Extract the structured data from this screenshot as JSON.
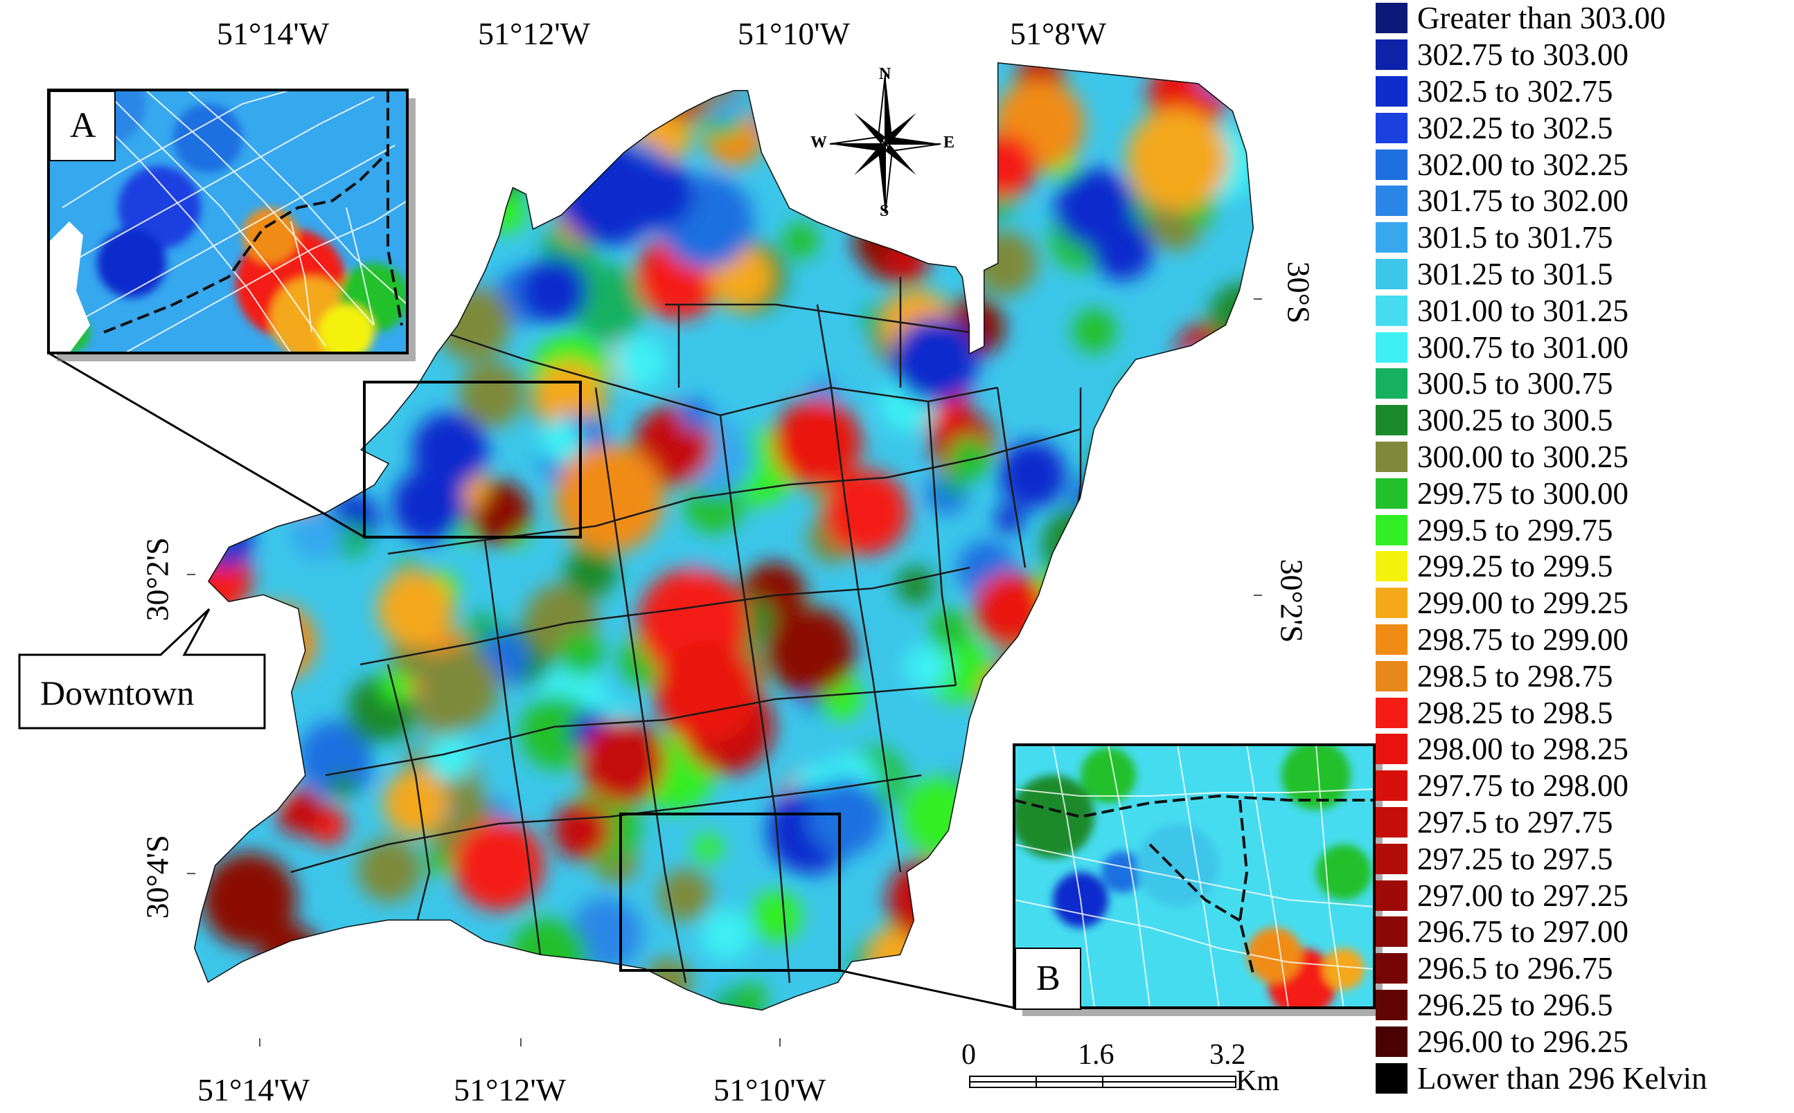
{
  "top_longitudes": [
    "51°14'W",
    "51°12'W",
    "51°10'W",
    "51°8'W"
  ],
  "bottom_longitudes": [
    "51°14'W",
    "51°12'W",
    "51°10'W"
  ],
  "left_latitudes": [
    "30°2'S",
    "30°4'S"
  ],
  "right_latitudes": [
    "30°S",
    "30°2'S"
  ],
  "compass": {
    "n": "N",
    "s": "S",
    "e": "E",
    "w": "W"
  },
  "inset_a_label": "A",
  "inset_b_label": "B",
  "downtown_label": "Downtown",
  "scale_bar": {
    "ticks": [
      "0",
      "1.6",
      "3.2"
    ],
    "unit": "Km"
  },
  "legend": [
    {
      "label": "Greater than 303.00",
      "color": "#0b1a78"
    },
    {
      "label": "302.75 to 303.00",
      "color": "#0d22a8"
    },
    {
      "label": "302.5 to 302.75",
      "color": "#0f2ccc"
    },
    {
      "label": "302.25 to 302.5",
      "color": "#1a40e0"
    },
    {
      "label": "302.00 to 302.25",
      "color": "#1e6fe0"
    },
    {
      "label": "301.75 to 302.00",
      "color": "#2a86e6"
    },
    {
      "label": "301.5 to 301.75",
      "color": "#36a8ee"
    },
    {
      "label": "301.25 to 301.5",
      "color": "#3cc6ea"
    },
    {
      "label": "301.00 to 301.25",
      "color": "#46dcef"
    },
    {
      "label": "300.75 to 301.00",
      "color": "#3ef0f4"
    },
    {
      "label": "300.5 to 300.75",
      "color": "#16b060"
    },
    {
      "label": "300.25 to 300.5",
      "color": "#1a8a2a"
    },
    {
      "label": "300.00 to 300.25",
      "color": "#7e8a3a"
    },
    {
      "label": "299.75 to 300.00",
      "color": "#22c02a"
    },
    {
      "label": "299.5 to 299.75",
      "color": "#32ee24"
    },
    {
      "label": "299.25 to 299.5",
      "color": "#f4f20a"
    },
    {
      "label": "299.00 to 299.25",
      "color": "#f4a81a"
    },
    {
      "label": "298.75 to 299.00",
      "color": "#f08c14"
    },
    {
      "label": "298.5 to 298.75",
      "color": "#e8881a"
    },
    {
      "label": "298.25 to 298.5",
      "color": "#f41c14"
    },
    {
      "label": "298.00 to 298.25",
      "color": "#e8120e"
    },
    {
      "label": "297.75 to 298.00",
      "color": "#d8100c"
    },
    {
      "label": "297.5 to 297.75",
      "color": "#c40e0a"
    },
    {
      "label": "297.25 to 297.5",
      "color": "#b20c08"
    },
    {
      "label": "297.00 to 297.25",
      "color": "#9e0a08"
    },
    {
      "label": "296.75 to 297.00",
      "color": "#8a0806"
    },
    {
      "label": "296.5 to 296.75",
      "color": "#760606"
    },
    {
      "label": "296.25 to 296.5",
      "color": "#620404"
    },
    {
      "label": "296.00 to 296.25",
      "color": "#4a0303"
    },
    {
      "label": "Lower than 296 Kelvin",
      "color": "#000000"
    }
  ]
}
